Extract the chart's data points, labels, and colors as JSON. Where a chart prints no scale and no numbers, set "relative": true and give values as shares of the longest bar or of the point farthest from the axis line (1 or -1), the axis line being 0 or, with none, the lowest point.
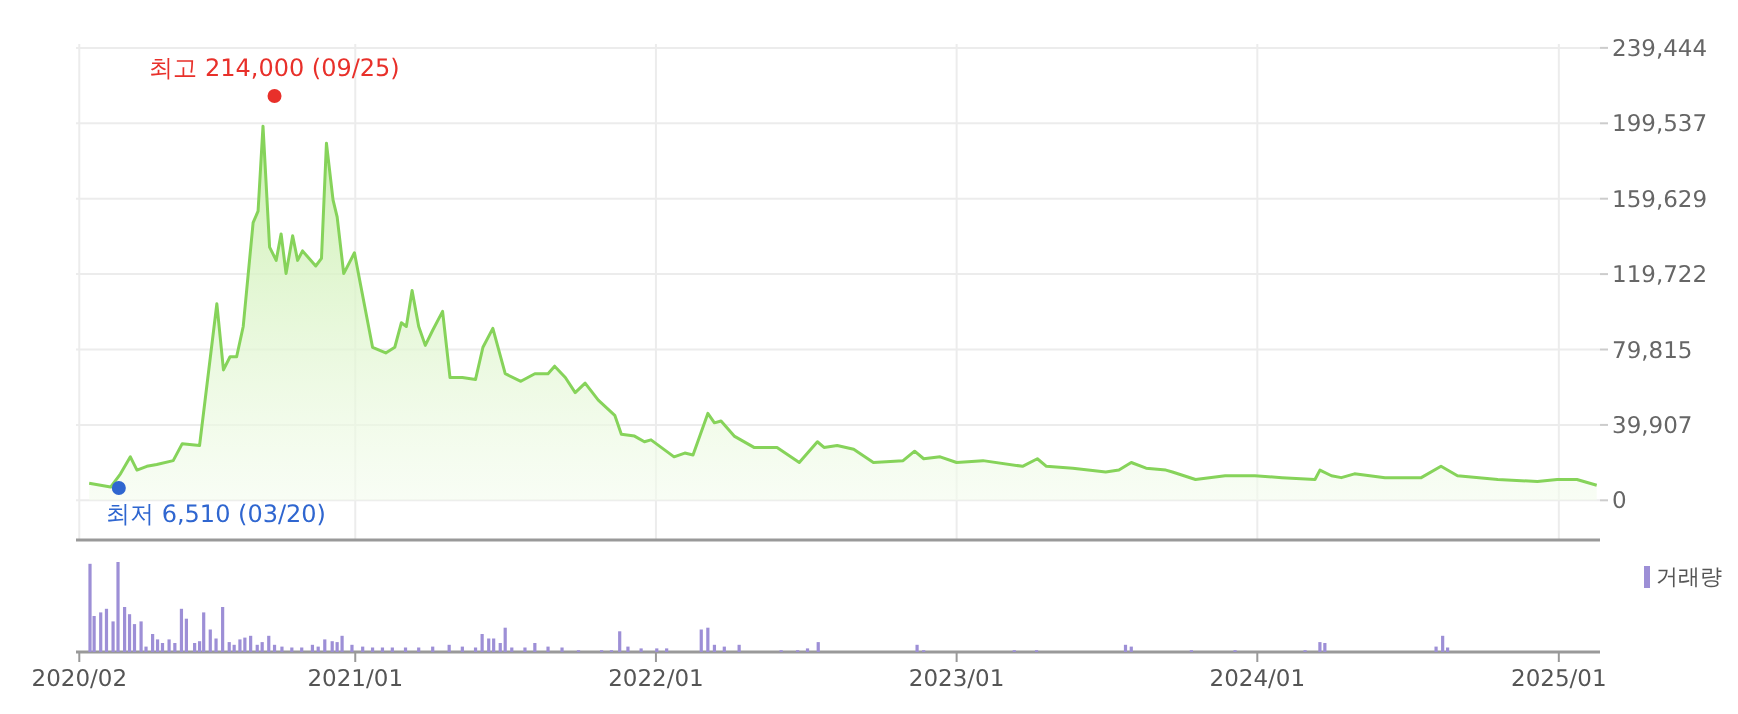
{
  "chart_data": [
    {
      "type": "area",
      "x": [
        "2020-02-13",
        "2020-03-10",
        "2020-03-22",
        "2020-04-03",
        "2020-04-11",
        "2020-04-23",
        "2020-05-05",
        "2020-05-25",
        "2020-06-05",
        "2020-06-26",
        "2020-07-17",
        "2020-07-25",
        "2020-08-02",
        "2020-08-10",
        "2020-08-18",
        "2020-08-30",
        "2020-09-05",
        "2020-09-11",
        "2020-09-19",
        "2020-09-27",
        "2020-10-03",
        "2020-10-09",
        "2020-10-17",
        "2020-10-23",
        "2020-10-29",
        "2020-11-14",
        "2020-11-21",
        "2020-11-27",
        "2020-12-05",
        "2020-12-10",
        "2020-12-18",
        "2020-12-31",
        "2021-01-22",
        "2021-02-07",
        "2021-02-18",
        "2021-02-26",
        "2021-03-04",
        "2021-03-11",
        "2021-03-19",
        "2021-03-27",
        "2021-04-05",
        "2021-04-17",
        "2021-04-26",
        "2021-05-11",
        "2021-05-27",
        "2021-06-05",
        "2021-06-17",
        "2021-07-02",
        "2021-07-21",
        "2021-08-07",
        "2021-08-23",
        "2021-08-31",
        "2021-09-13",
        "2021-09-25",
        "2021-10-07",
        "2021-10-23",
        "2021-11-12",
        "2021-11-20",
        "2021-12-06",
        "2021-12-18",
        "2021-12-26",
        "2022-01-23",
        "2022-02-05",
        "2022-02-15",
        "2022-03-05",
        "2022-03-13",
        "2022-03-21",
        "2022-04-06",
        "2022-04-30",
        "2022-05-28",
        "2022-06-24",
        "2022-07-16",
        "2022-07-24",
        "2022-08-09",
        "2022-08-29",
        "2022-09-22",
        "2022-10-28",
        "2022-11-11",
        "2022-11-22",
        "2022-12-12",
        "2023-01-01",
        "2023-02-02",
        "2023-03-22",
        "2023-04-09",
        "2023-04-20",
        "2023-05-22",
        "2023-07-01",
        "2023-07-17",
        "2023-08-01",
        "2023-08-19",
        "2023-09-12",
        "2023-09-20",
        "2023-10-18",
        "2023-11-23",
        "2023-12-29",
        "2024-01-31",
        "2024-03-11",
        "2024-03-17",
        "2024-03-31",
        "2024-04-12",
        "2024-04-28",
        "2024-06-04",
        "2024-07-18",
        "2024-08-11",
        "2024-08-31",
        "2024-10-19",
        "2024-12-06",
        "2024-12-30",
        "2025-01-23",
        "2025-02-16"
      ],
      "series": [
        {
          "color": "#86d35a",
          "values": [
            9000,
            7000,
            14000,
            23000,
            16000,
            18000,
            19000,
            21000,
            30000,
            29000,
            104000,
            69000,
            76000,
            76000,
            92000,
            147000,
            153000,
            198000,
            134000,
            127000,
            141000,
            120000,
            140000,
            127000,
            132000,
            124000,
            128000,
            189000,
            159000,
            150000,
            120000,
            131000,
            81000,
            78000,
            81000,
            94000,
            92000,
            111000,
            92000,
            82000,
            90000,
            100000,
            65000,
            65000,
            64000,
            81000,
            91000,
            67000,
            63000,
            67000,
            67000,
            71000,
            65000,
            57000,
            62000,
            53000,
            45000,
            35000,
            34000,
            31000,
            32000,
            23000,
            25000,
            24000,
            46000,
            41000,
            42000,
            34000,
            28000,
            28000,
            20000,
            31000,
            28000,
            29000,
            27000,
            20000,
            21000,
            26000,
            22000,
            23000,
            20000,
            21000,
            18000,
            22000,
            18000,
            17000,
            15000,
            16000,
            20000,
            17000,
            16000,
            15000,
            11000,
            13000,
            13000,
            12000,
            11000,
            16000,
            13000,
            12000,
            14000,
            12000,
            12000,
            18000,
            13000,
            11000,
            10000,
            11000,
            11000,
            8000
          ]
        }
      ],
      "xlim": [
        "2020-01-28",
        "2025-02-20"
      ],
      "xticks": [
        {
          "value": "2020-02-01",
          "label": null
        },
        {
          "value": "2021-01-01",
          "label": null
        },
        {
          "value": "2022-01-01",
          "label": null
        },
        {
          "value": "2023-01-01",
          "label": null
        },
        {
          "value": "2024-01-01",
          "label": null
        },
        {
          "value": "2025-01-01",
          "label": null
        }
      ],
      "ylim": [
        -21000,
        241500
      ],
      "yticks": [
        0,
        {
          "value": 39907,
          "label": "39,907"
        },
        {
          "value": 79815,
          "label": "79,815"
        },
        {
          "value": 119722,
          "label": "119,722"
        },
        {
          "value": 159629,
          "label": "159,629"
        },
        {
          "value": 199537,
          "label": "199,537"
        },
        {
          "value": 239444,
          "label": "239,444"
        }
      ],
      "tick_labels": "y",
      "grid": true,
      "annotations": [
        {
          "text": "최고 214,000 (09/25)",
          "x": "2020-09-25",
          "y": 214000
        },
        {
          "text": "최저 6,510 (03/20)",
          "x": "2020-03-20",
          "y": 6510
        }
      ]
    },
    {
      "type": "bar",
      "relative": true,
      "x": [
        "2020-02-14",
        "2020-02-19",
        "2020-02-27",
        "2020-03-05",
        "2020-03-13",
        "2020-03-19",
        "2020-03-27",
        "2020-04-02",
        "2020-04-08",
        "2020-04-16",
        "2020-04-22",
        "2020-04-30",
        "2020-05-06",
        "2020-05-12",
        "2020-05-20",
        "2020-05-27",
        "2020-06-04",
        "2020-06-10",
        "2020-06-20",
        "2020-06-26",
        "2020-07-01",
        "2020-07-09",
        "2020-07-16",
        "2020-07-24",
        "2020-08-01",
        "2020-08-07",
        "2020-08-14",
        "2020-08-20",
        "2020-08-27",
        "2020-09-04",
        "2020-09-10",
        "2020-09-18",
        "2020-09-25",
        "2020-10-04",
        "2020-10-16",
        "2020-10-28",
        "2020-11-10",
        "2020-11-17",
        "2020-11-25",
        "2020-12-04",
        "2020-12-10",
        "2020-12-16",
        "2020-12-28",
        "2021-01-10",
        "2021-01-22",
        "2021-02-03",
        "2021-02-15",
        "2021-03-03",
        "2021-03-19",
        "2021-04-05",
        "2021-04-25",
        "2021-05-11",
        "2021-05-27",
        "2021-06-04",
        "2021-06-12",
        "2021-06-18",
        "2021-06-26",
        "2021-07-02",
        "2021-07-10",
        "2021-07-26",
        "2021-08-07",
        "2021-08-23",
        "2021-09-09",
        "2021-09-29",
        "2021-10-27",
        "2021-11-08",
        "2021-11-18",
        "2021-11-28",
        "2021-12-14",
        "2022-01-02",
        "2022-01-14",
        "2022-02-25",
        "2022-03-05",
        "2022-03-13",
        "2022-03-25",
        "2022-04-12",
        "2022-06-02",
        "2022-06-22",
        "2022-07-04",
        "2022-07-17",
        "2022-11-14",
        "2022-11-22",
        "2023-03-12",
        "2023-04-08",
        "2023-07-25",
        "2023-08-01",
        "2023-10-13",
        "2023-12-05",
        "2024-02-28",
        "2024-03-17",
        "2024-03-23",
        "2024-08-05",
        "2024-08-13",
        "2024-08-19"
      ],
      "series": [
        {
          "name": "거래량",
          "color": "#9d8fd6",
          "values": [
            0.98,
            0.4,
            0.44,
            0.48,
            0.34,
            1,
            0.5,
            0.42,
            0.31,
            0.34,
            0.06,
            0.2,
            0.14,
            0.1,
            0.14,
            0.1,
            0.48,
            0.37,
            0.1,
            0.12,
            0.44,
            0.25,
            0.15,
            0.5,
            0.11,
            0.08,
            0.14,
            0.16,
            0.18,
            0.08,
            0.11,
            0.18,
            0.08,
            0.06,
            0.05,
            0.05,
            0.08,
            0.06,
            0.14,
            0.12,
            0.11,
            0.18,
            0.08,
            0.06,
            0.05,
            0.05,
            0.05,
            0.05,
            0.05,
            0.06,
            0.08,
            0.06,
            0.05,
            0.2,
            0.15,
            0.15,
            0.1,
            0.27,
            0.05,
            0.05,
            0.1,
            0.06,
            0.05,
            0.02,
            0.02,
            0.02,
            0.23,
            0.06,
            0.04,
            0.04,
            0.04,
            0.25,
            0.27,
            0.08,
            0.06,
            0.08,
            0.02,
            0.02,
            0.04,
            0.11,
            0.08,
            0.02,
            0.02,
            0.02,
            0.08,
            0.06,
            0.02,
            0.02,
            0.02,
            0.11,
            0.1,
            0.06,
            0.18,
            0.05
          ]
        }
      ],
      "xlim": [
        "2020-01-28",
        "2025-02-20"
      ],
      "xticks": [
        {
          "value": "2020-02-01",
          "label": "2020/02"
        },
        {
          "value": "2021-01-01",
          "label": "2021/01"
        },
        {
          "value": "2022-01-01",
          "label": "2022/01"
        },
        {
          "value": "2023-01-01",
          "label": "2023/01"
        },
        {
          "value": "2024-01-01",
          "label": "2024/01"
        },
        {
          "value": "2025-01-01",
          "label": "2025/01"
        }
      ],
      "tick_labels": "x",
      "legend": "top right"
    }
  ]
}
